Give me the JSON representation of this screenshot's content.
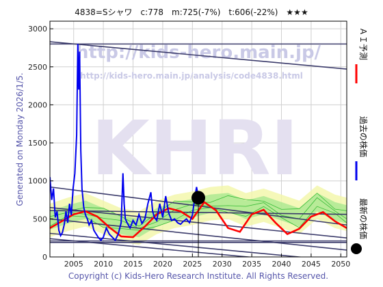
{
  "chart_data": {
    "type": "line",
    "title": "4838=Sシャワ　c:778　m:725(-7%)　t:606(-22%)　★★★",
    "ylim": [
      0,
      3100
    ],
    "xlim": [
      2001,
      2051
    ],
    "x_ticks": [
      2005,
      2010,
      2015,
      2020,
      2025,
      2030,
      2035,
      2040,
      2045,
      2050
    ],
    "y_ticks": [
      0,
      500,
      1000,
      1500,
      2000,
      2500,
      3000
    ],
    "grid": true,
    "watermarks": [
      "http://kids-hero.main.jp/",
      "http://kids-hero.main.jp/analysis/code4838.html",
      "KHRI"
    ],
    "side_label": "Generated on Monday 2026/1/5.",
    "footer": "Copyright (c) Kids-Hero Research Institute. All Rights Reserved.",
    "legend_position": "right-vertical",
    "series": [
      {
        "name": "過去の株価",
        "color": "#0000ee",
        "x": [
          2001.0,
          2001.3,
          2001.6,
          2001.9,
          2002.2,
          2002.5,
          2002.8,
          2003.1,
          2003.4,
          2003.7,
          2004.0,
          2004.3,
          2004.6,
          2004.9,
          2005.2,
          2005.5,
          2005.7,
          2005.85,
          2006.0,
          2006.2,
          2006.4,
          2006.7,
          2007.0,
          2007.3,
          2007.6,
          2008.0,
          2008.4,
          2008.8,
          2009.2,
          2009.6,
          2010.0,
          2010.5,
          2011.0,
          2011.5,
          2012.0,
          2012.5,
          2013.0,
          2013.3,
          2013.5,
          2013.7,
          2014.0,
          2014.5,
          2015.0,
          2015.5,
          2016.0,
          2016.5,
          2017.0,
          2017.5,
          2018.0,
          2018.3,
          2018.6,
          2019.0,
          2019.5,
          2020.0,
          2020.5,
          2021.0,
          2021.5,
          2022.0,
          2022.5,
          2023.0,
          2023.5,
          2024.0,
          2024.5,
          2025.0,
          2025.4,
          2025.7,
          2026.0
        ],
        "values": [
          1050,
          750,
          900,
          520,
          600,
          350,
          280,
          320,
          420,
          600,
          450,
          700,
          550,
          900,
          1100,
          1600,
          2800,
          2200,
          2700,
          1400,
          900,
          650,
          550,
          500,
          420,
          480,
          350,
          300,
          250,
          220,
          260,
          380,
          300,
          260,
          220,
          300,
          450,
          1100,
          700,
          500,
          450,
          380,
          480,
          420,
          560,
          440,
          500,
          700,
          850,
          600,
          520,
          480,
          700,
          520,
          800,
          580,
          480,
          500,
          450,
          430,
          470,
          500,
          450,
          550,
          780,
          920,
          778
        ]
      },
      {
        "name": "ＡＩ予測",
        "color": "#ff0000",
        "x": [
          2001,
          2003,
          2005,
          2007,
          2009,
          2011,
          2013,
          2015,
          2017,
          2019,
          2021,
          2023,
          2025,
          2027,
          2029,
          2031,
          2033,
          2035,
          2037,
          2039,
          2041,
          2043,
          2045,
          2047,
          2049,
          2051
        ],
        "values": [
          380,
          470,
          560,
          600,
          530,
          390,
          270,
          260,
          400,
          560,
          640,
          600,
          500,
          720,
          610,
          380,
          330,
          560,
          620,
          450,
          300,
          370,
          530,
          590,
          470,
          380
        ]
      }
    ],
    "latest_point": {
      "name": "最新の株価",
      "x": 2026.0,
      "y": 778
    },
    "trend_lines": [
      {
        "x": [
          2001,
          2051
        ],
        "y": [
          2830,
          2470
        ]
      },
      {
        "x": [
          2001,
          2051
        ],
        "y": [
          2800,
          2800
        ]
      },
      {
        "x": [
          2001,
          2051
        ],
        "y": [
          920,
          420
        ]
      },
      {
        "x": [
          2001,
          2051
        ],
        "y": [
          650,
          250
        ]
      },
      {
        "x": [
          2001,
          2051
        ],
        "y": [
          610,
          560
        ]
      },
      {
        "x": [
          2001,
          2051
        ],
        "y": [
          500,
          90
        ]
      },
      {
        "x": [
          2001,
          2051
        ],
        "y": [
          310,
          -60
        ]
      },
      {
        "x": [
          2001,
          2051
        ],
        "y": [
          240,
          -120
        ]
      },
      {
        "x": [
          2001,
          2051
        ],
        "y": [
          210,
          210
        ]
      },
      {
        "x": [
          2001,
          2051
        ],
        "y": [
          190,
          190
        ]
      }
    ],
    "forecast_band_center": {
      "x": [
        2001,
        2004,
        2007,
        2010,
        2013,
        2016,
        2019,
        2022,
        2025,
        2028,
        2031,
        2034,
        2037,
        2040,
        2043,
        2046,
        2049,
        2051
      ],
      "values": [
        480,
        560,
        620,
        520,
        420,
        380,
        520,
        600,
        640,
        700,
        720,
        620,
        680,
        600,
        520,
        720,
        600,
        560
      ],
      "halfwidth": 220
    }
  }
}
